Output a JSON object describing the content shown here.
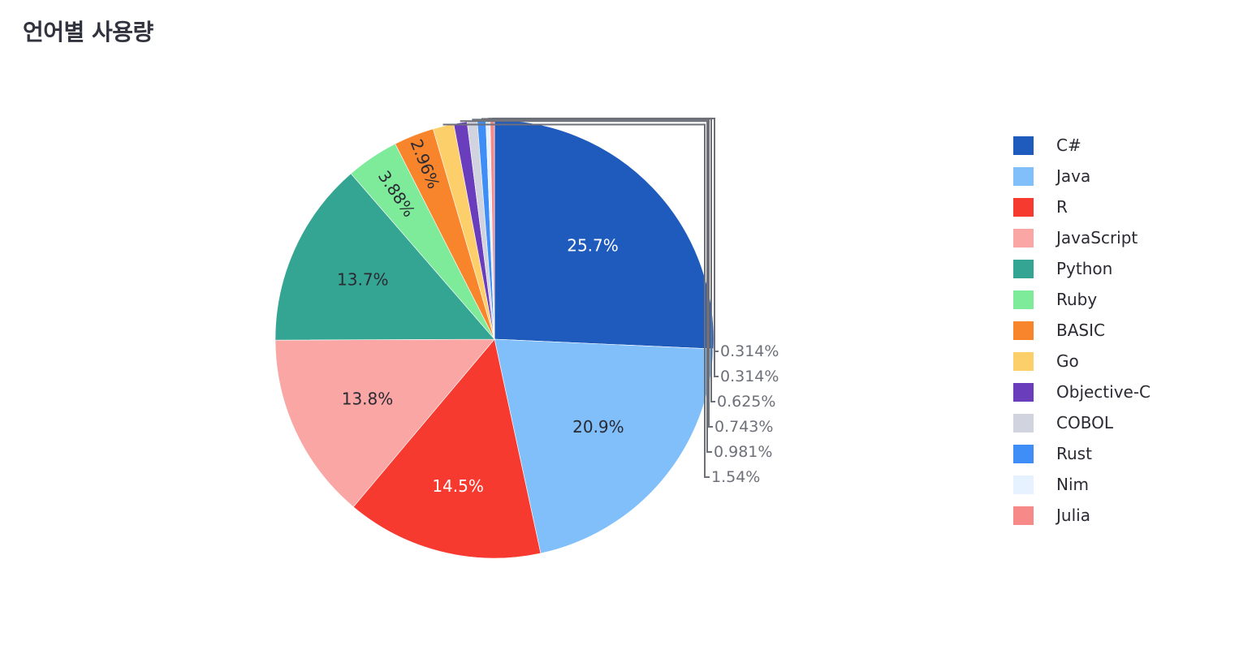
{
  "chart_data": {
    "type": "pie",
    "title": "언어별 사용량",
    "legend_position": "right",
    "direction": "clockwise",
    "start_angle": "top",
    "slices": [
      {
        "name": "C#",
        "value": 25.7,
        "label": "25.7%",
        "color": "#1f5bbd",
        "text_color": "#ffffff"
      },
      {
        "name": "Java",
        "value": 20.9,
        "label": "20.9%",
        "color": "#80bffa",
        "text_color": "#2a2a33"
      },
      {
        "name": "R",
        "value": 14.5,
        "label": "14.5%",
        "color": "#f73a2f",
        "text_color": "#ffffff"
      },
      {
        "name": "JavaScript",
        "value": 13.8,
        "label": "13.8%",
        "color": "#f9a6a4",
        "text_color": "#2a2a33"
      },
      {
        "name": "Python",
        "value": 13.7,
        "label": "13.7%",
        "color": "#35a593",
        "text_color": "#2a2a33"
      },
      {
        "name": "Ruby",
        "value": 3.88,
        "label": "3.88%",
        "color": "#7eeb9b",
        "text_color": "#2a2a33"
      },
      {
        "name": "BASIC",
        "value": 2.96,
        "label": "2.96%",
        "color": "#f8852c",
        "text_color": "#2a2a33"
      },
      {
        "name": "Go",
        "value": 1.54,
        "label": "1.54%",
        "color": "#fdcf6b",
        "text_color": "#6e7079"
      },
      {
        "name": "Objective-C",
        "value": 0.981,
        "label": "0.981%",
        "color": "#6a3dbd",
        "text_color": "#6e7079"
      },
      {
        "name": "COBOL",
        "value": 0.743,
        "label": "0.743%",
        "color": "#d1d4df",
        "text_color": "#6e7079"
      },
      {
        "name": "Rust",
        "value": 0.625,
        "label": "0.625%",
        "color": "#3f8ef7",
        "text_color": "#6e7079"
      },
      {
        "name": "Nim",
        "value": 0.314,
        "label": "0.314%",
        "color": "#e6f2ff",
        "text_color": "#6e7079"
      },
      {
        "name": "Julia",
        "value": 0.314,
        "label": "0.314%",
        "color": "#f78a88",
        "text_color": "#6e7079"
      }
    ]
  }
}
